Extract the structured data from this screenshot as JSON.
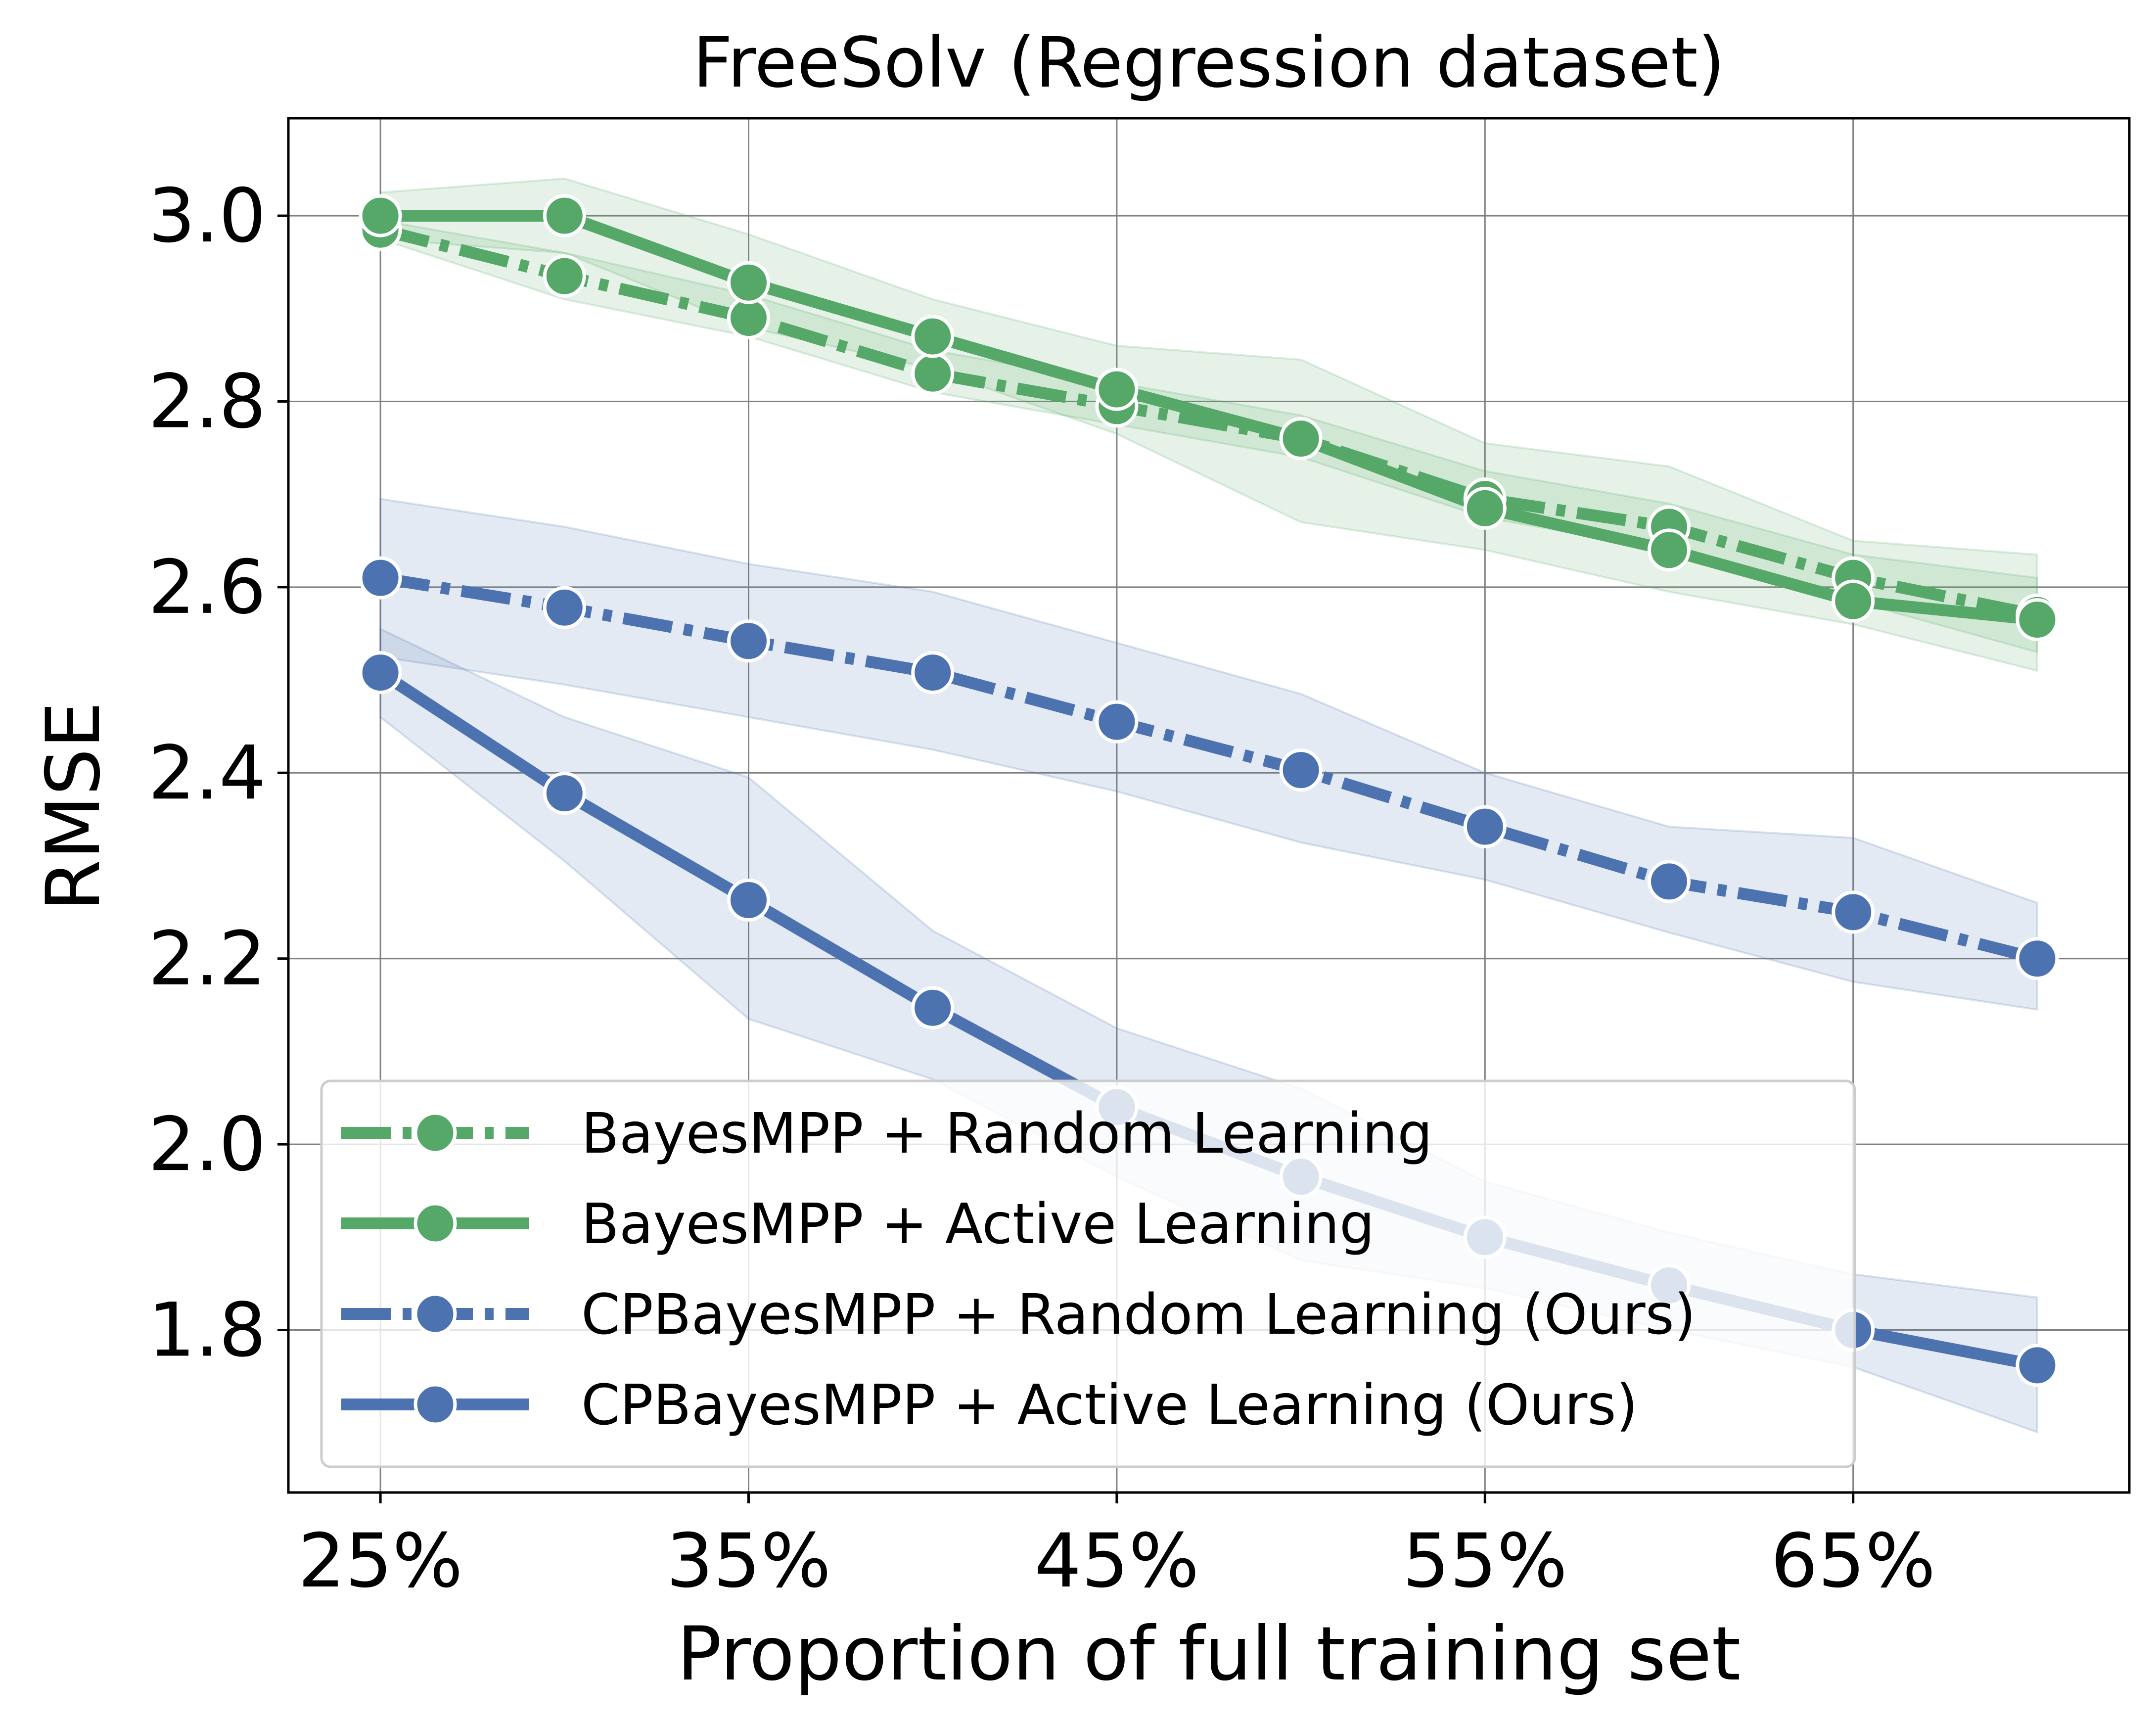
{
  "chart_data": {
    "type": "line",
    "title": "FreeSolv (Regression dataset)",
    "xlabel": "Proportion of full training set",
    "ylabel": "RMSE",
    "x": [
      25,
      30,
      35,
      40,
      45,
      50,
      55,
      60,
      65,
      70
    ],
    "xlim": [
      22.5,
      72.5
    ],
    "ylim": [
      1.625,
      3.105
    ],
    "x_ticks": [
      25,
      35,
      45,
      55,
      65
    ],
    "x_tick_labels": [
      "25%",
      "35%",
      "45%",
      "55%",
      "65%"
    ],
    "y_ticks": [
      1.8,
      2.0,
      2.2,
      2.4,
      2.6,
      2.8,
      3.0
    ],
    "y_tick_labels": [
      "1.8",
      "2.0",
      "2.2",
      "2.4",
      "2.6",
      "2.8",
      "3.0"
    ],
    "grid": true,
    "legend_position": "lower-left",
    "series": [
      {
        "name": "BayesMPP + Random Learning",
        "color": "#55a868",
        "style": "dashdot",
        "values": [
          2.985,
          2.935,
          2.89,
          2.83,
          2.795,
          2.76,
          2.695,
          2.665,
          2.61,
          2.57
        ],
        "lower": [
          2.975,
          2.91,
          2.87,
          2.81,
          2.775,
          2.74,
          2.675,
          2.64,
          2.585,
          2.53
        ],
        "upper": [
          2.995,
          2.96,
          2.915,
          2.855,
          2.82,
          2.785,
          2.725,
          2.69,
          2.635,
          2.61
        ]
      },
      {
        "name": "BayesMPP + Active Learning",
        "color": "#55a868",
        "style": "solid",
        "values": [
          3.0,
          3.0,
          2.928,
          2.87,
          2.813,
          2.76,
          2.685,
          2.64,
          2.585,
          2.565
        ],
        "lower": [
          2.975,
          2.96,
          2.88,
          2.835,
          2.765,
          2.67,
          2.64,
          2.595,
          2.56,
          2.51
        ],
        "upper": [
          3.025,
          3.04,
          2.98,
          2.91,
          2.86,
          2.845,
          2.755,
          2.73,
          2.65,
          2.635
        ]
      },
      {
        "name": "CPBayesMPP + Random Learning (Ours)",
        "color": "#4c72b0",
        "style": "dashdot",
        "values": [
          2.61,
          2.578,
          2.542,
          2.508,
          2.455,
          2.403,
          2.342,
          2.283,
          2.25,
          2.2
        ],
        "lower": [
          2.525,
          2.495,
          2.46,
          2.425,
          2.38,
          2.325,
          2.285,
          2.228,
          2.175,
          2.145
        ],
        "upper": [
          2.695,
          2.665,
          2.625,
          2.595,
          2.54,
          2.485,
          2.4,
          2.342,
          2.33,
          2.26
        ]
      },
      {
        "name": "CPBayesMPP + Active Learning (Ours)",
        "color": "#4c72b0",
        "style": "solid",
        "values": [
          2.508,
          2.378,
          2.263,
          2.147,
          2.04,
          1.965,
          1.9,
          1.848,
          1.8,
          1.762
        ],
        "lower": [
          2.46,
          2.305,
          2.135,
          2.07,
          1.965,
          1.875,
          1.845,
          1.8,
          1.76,
          1.69
        ],
        "upper": [
          2.555,
          2.46,
          2.395,
          2.23,
          2.125,
          2.06,
          1.96,
          1.905,
          1.86,
          1.835
        ]
      }
    ]
  }
}
